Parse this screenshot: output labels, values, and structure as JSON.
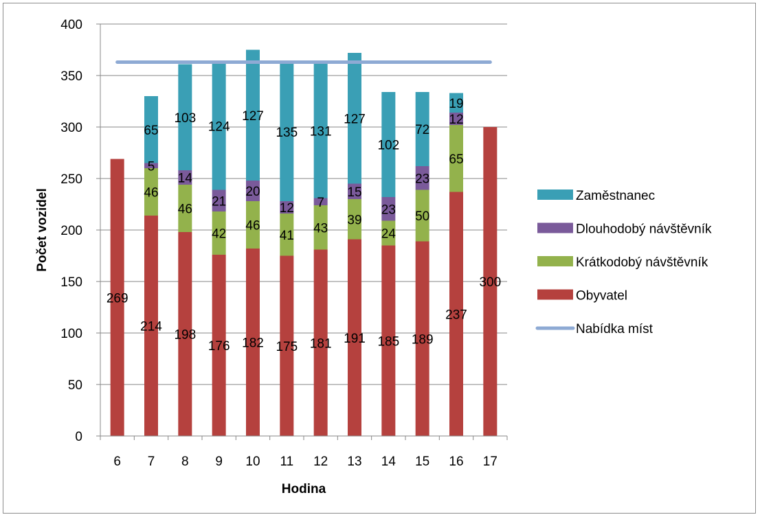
{
  "chart_data": {
    "type": "bar",
    "stacked": true,
    "title": "",
    "xlabel": "Hodina",
    "ylabel": "Počet vozidel",
    "ylim": [
      0,
      400
    ],
    "yticks": [
      0,
      50,
      100,
      150,
      200,
      250,
      300,
      350,
      400
    ],
    "grid": true,
    "legend_position": "right",
    "categories": [
      "6",
      "7",
      "8",
      "9",
      "10",
      "11",
      "12",
      "13",
      "14",
      "15",
      "16",
      "17"
    ],
    "series": [
      {
        "name": "Obyvatel",
        "color": "#b5413e",
        "values": [
          269,
          214,
          198,
          176,
          182,
          175,
          181,
          191,
          185,
          189,
          237,
          300
        ],
        "labels": [
          "269",
          "214",
          "198",
          "176",
          "182",
          "175",
          "181",
          "191",
          "185",
          "189",
          "237",
          "300"
        ]
      },
      {
        "name": "Krátkodobý návštěvník",
        "color": "#93b24c",
        "values": [
          0,
          46,
          46,
          42,
          46,
          41,
          43,
          39,
          24,
          50,
          65,
          0
        ],
        "labels": [
          "",
          "46",
          "46",
          "42",
          "46",
          "41",
          "43",
          "39",
          "24",
          "50",
          "65",
          ""
        ]
      },
      {
        "name": "Dlouhodobý návštěvník",
        "color": "#7a5a9a",
        "values": [
          0,
          5,
          14,
          21,
          20,
          12,
          7,
          15,
          23,
          23,
          12,
          0
        ],
        "labels": [
          "",
          "5",
          "14",
          "21",
          "20",
          "12",
          "7",
          "15",
          "23",
          "23",
          "12",
          ""
        ]
      },
      {
        "name": "Zaměstnanec",
        "color": "#3a9fb5",
        "values": [
          0,
          65,
          103,
          124,
          127,
          135,
          131,
          127,
          102,
          72,
          19,
          0
        ],
        "labels": [
          "",
          "65",
          "103",
          "124",
          "127",
          "135",
          "131",
          "127",
          "102",
          "72",
          "19",
          ""
        ]
      }
    ],
    "line": {
      "name": "Nabídka míst",
      "color": "#8eaad4",
      "value": 363
    },
    "legend_order": [
      "Zaměstnanec",
      "Dlouhodobý návštěvník",
      "Krátkodobý návštěvník",
      "Obyvatel",
      "Nabídka míst"
    ]
  }
}
